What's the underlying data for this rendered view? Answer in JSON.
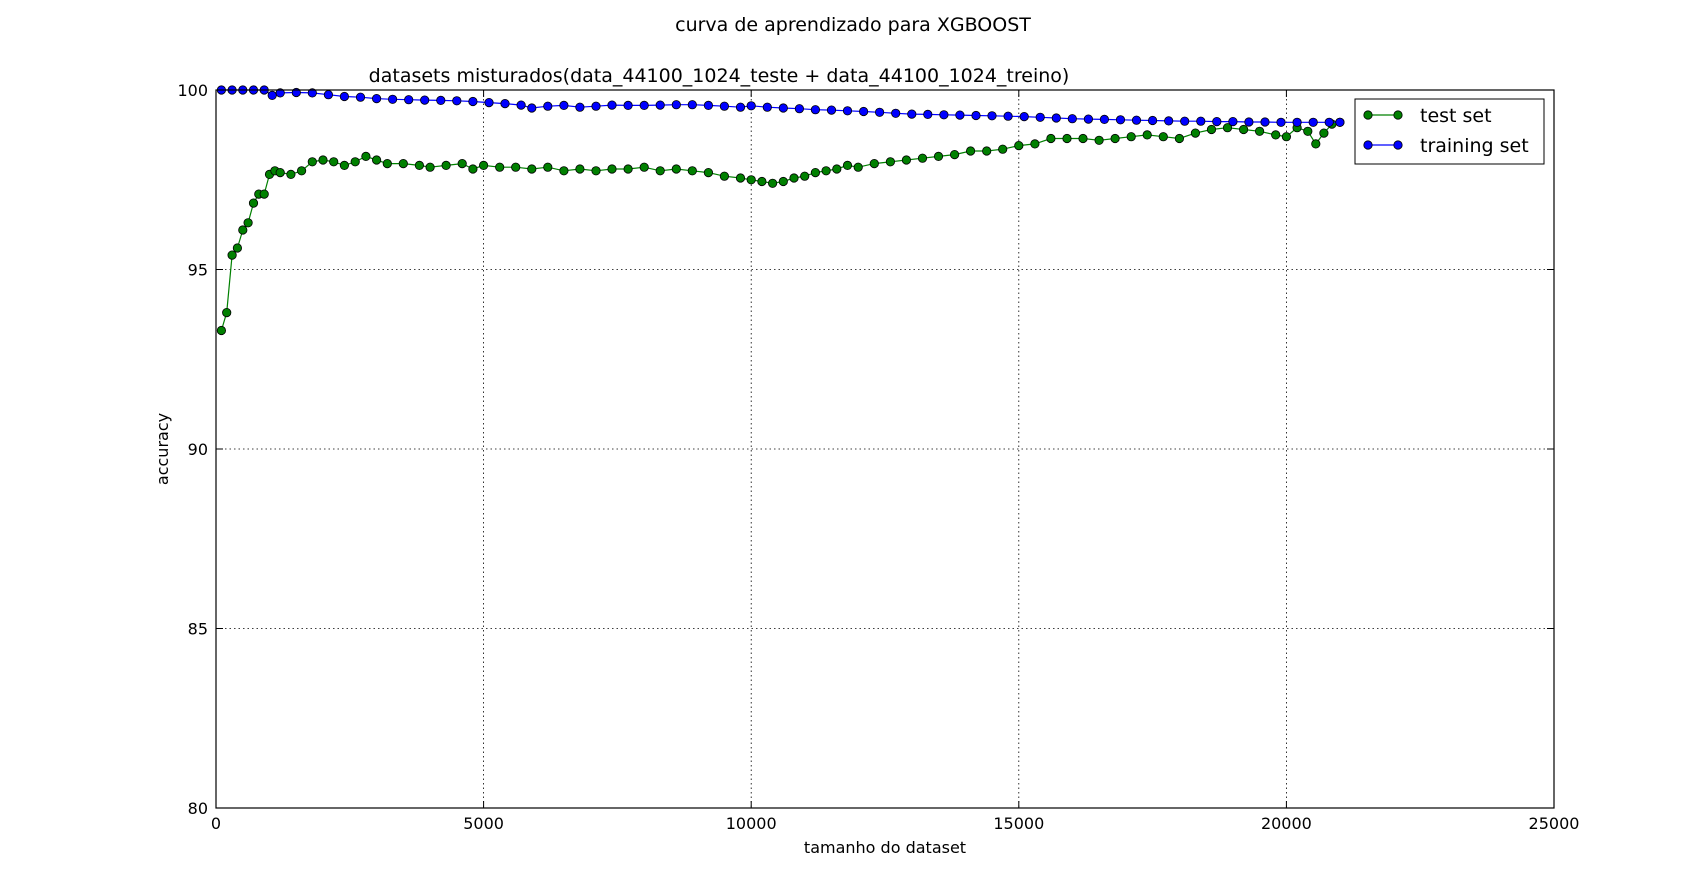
{
  "chart_data": {
    "type": "line",
    "title": "curva de aprendizado para XGBOOST",
    "subtitle": "datasets misturados(data_44100_1024_teste + data_44100_1024_treino)",
    "xlabel": "tamanho do dataset",
    "ylabel": "accuracy",
    "xlim": [
      0,
      25000
    ],
    "ylim": [
      80,
      100
    ],
    "xticks": [
      0,
      5000,
      10000,
      15000,
      20000,
      25000
    ],
    "yticks": [
      80,
      85,
      90,
      95,
      100
    ],
    "grid": true,
    "grid_style": "dotted",
    "legend_position": "top-right",
    "series": [
      {
        "name": "test set",
        "color": "#008000",
        "marker": "circle",
        "points": [
          [
            100,
            93.3
          ],
          [
            200,
            93.8
          ],
          [
            300,
            95.4
          ],
          [
            400,
            95.6
          ],
          [
            500,
            96.1
          ],
          [
            600,
            96.3
          ],
          [
            700,
            96.85
          ],
          [
            800,
            97.1
          ],
          [
            900,
            97.1
          ],
          [
            1000,
            97.65
          ],
          [
            1100,
            97.75
          ],
          [
            1200,
            97.7
          ],
          [
            1400,
            97.65
          ],
          [
            1600,
            97.75
          ],
          [
            1800,
            98.0
          ],
          [
            2000,
            98.05
          ],
          [
            2200,
            98.0
          ],
          [
            2400,
            97.9
          ],
          [
            2600,
            98.0
          ],
          [
            2800,
            98.15
          ],
          [
            3000,
            98.05
          ],
          [
            3200,
            97.95
          ],
          [
            3500,
            97.95
          ],
          [
            3800,
            97.9
          ],
          [
            4000,
            97.85
          ],
          [
            4300,
            97.9
          ],
          [
            4600,
            97.95
          ],
          [
            4800,
            97.8
          ],
          [
            5000,
            97.9
          ],
          [
            5300,
            97.85
          ],
          [
            5600,
            97.85
          ],
          [
            5900,
            97.8
          ],
          [
            6200,
            97.85
          ],
          [
            6500,
            97.75
          ],
          [
            6800,
            97.8
          ],
          [
            7100,
            97.75
          ],
          [
            7400,
            97.8
          ],
          [
            7700,
            97.8
          ],
          [
            8000,
            97.85
          ],
          [
            8300,
            97.75
          ],
          [
            8600,
            97.8
          ],
          [
            8900,
            97.75
          ],
          [
            9200,
            97.7
          ],
          [
            9500,
            97.6
          ],
          [
            9800,
            97.55
          ],
          [
            10000,
            97.5
          ],
          [
            10200,
            97.45
          ],
          [
            10400,
            97.4
          ],
          [
            10600,
            97.45
          ],
          [
            10800,
            97.55
          ],
          [
            11000,
            97.6
          ],
          [
            11200,
            97.7
          ],
          [
            11400,
            97.75
          ],
          [
            11600,
            97.8
          ],
          [
            11800,
            97.9
          ],
          [
            12000,
            97.85
          ],
          [
            12300,
            97.95
          ],
          [
            12600,
            98.0
          ],
          [
            12900,
            98.05
          ],
          [
            13200,
            98.1
          ],
          [
            13500,
            98.15
          ],
          [
            13800,
            98.2
          ],
          [
            14100,
            98.3
          ],
          [
            14400,
            98.3
          ],
          [
            14700,
            98.35
          ],
          [
            15000,
            98.45
          ],
          [
            15300,
            98.5
          ],
          [
            15600,
            98.65
          ],
          [
            15900,
            98.65
          ],
          [
            16200,
            98.65
          ],
          [
            16500,
            98.6
          ],
          [
            16800,
            98.65
          ],
          [
            17100,
            98.7
          ],
          [
            17400,
            98.75
          ],
          [
            17700,
            98.7
          ],
          [
            18000,
            98.65
          ],
          [
            18300,
            98.8
          ],
          [
            18600,
            98.9
          ],
          [
            18900,
            98.95
          ],
          [
            19200,
            98.9
          ],
          [
            19500,
            98.85
          ],
          [
            19800,
            98.75
          ],
          [
            20000,
            98.7
          ],
          [
            20200,
            98.95
          ],
          [
            20400,
            98.85
          ],
          [
            20550,
            98.5
          ],
          [
            20700,
            98.8
          ],
          [
            20850,
            99.05
          ],
          [
            21000,
            99.1
          ]
        ]
      },
      {
        "name": "training set",
        "color": "#0000ff",
        "marker": "circle",
        "points": [
          [
            100,
            100.0
          ],
          [
            300,
            100.0
          ],
          [
            500,
            100.0
          ],
          [
            700,
            100.0
          ],
          [
            900,
            100.0
          ],
          [
            1050,
            99.85
          ],
          [
            1200,
            99.92
          ],
          [
            1500,
            99.93
          ],
          [
            1800,
            99.92
          ],
          [
            2100,
            99.87
          ],
          [
            2400,
            99.82
          ],
          [
            2700,
            99.8
          ],
          [
            3000,
            99.76
          ],
          [
            3300,
            99.74
          ],
          [
            3600,
            99.73
          ],
          [
            3900,
            99.72
          ],
          [
            4200,
            99.71
          ],
          [
            4500,
            99.7
          ],
          [
            4800,
            99.68
          ],
          [
            5100,
            99.65
          ],
          [
            5400,
            99.62
          ],
          [
            5700,
            99.58
          ],
          [
            5900,
            99.5
          ],
          [
            6200,
            99.55
          ],
          [
            6500,
            99.57
          ],
          [
            6800,
            99.52
          ],
          [
            7100,
            99.55
          ],
          [
            7400,
            99.58
          ],
          [
            7700,
            99.57
          ],
          [
            8000,
            99.57
          ],
          [
            8300,
            99.58
          ],
          [
            8600,
            99.59
          ],
          [
            8900,
            99.59
          ],
          [
            9200,
            99.57
          ],
          [
            9500,
            99.55
          ],
          [
            9800,
            99.52
          ],
          [
            10000,
            99.56
          ],
          [
            10300,
            99.52
          ],
          [
            10600,
            99.5
          ],
          [
            10900,
            99.48
          ],
          [
            11200,
            99.45
          ],
          [
            11500,
            99.44
          ],
          [
            11800,
            99.42
          ],
          [
            12100,
            99.4
          ],
          [
            12400,
            99.38
          ],
          [
            12700,
            99.35
          ],
          [
            13000,
            99.33
          ],
          [
            13300,
            99.32
          ],
          [
            13600,
            99.31
          ],
          [
            13900,
            99.3
          ],
          [
            14200,
            99.29
          ],
          [
            14500,
            99.28
          ],
          [
            14800,
            99.27
          ],
          [
            15100,
            99.26
          ],
          [
            15400,
            99.24
          ],
          [
            15700,
            99.22
          ],
          [
            16000,
            99.2
          ],
          [
            16300,
            99.19
          ],
          [
            16600,
            99.18
          ],
          [
            16900,
            99.17
          ],
          [
            17200,
            99.16
          ],
          [
            17500,
            99.15
          ],
          [
            17800,
            99.14
          ],
          [
            18100,
            99.13
          ],
          [
            18400,
            99.13
          ],
          [
            18700,
            99.12
          ],
          [
            19000,
            99.12
          ],
          [
            19300,
            99.11
          ],
          [
            19600,
            99.11
          ],
          [
            19900,
            99.1
          ],
          [
            20200,
            99.1
          ],
          [
            20500,
            99.1
          ],
          [
            20800,
            99.1
          ],
          [
            21000,
            99.1
          ]
        ]
      }
    ]
  }
}
